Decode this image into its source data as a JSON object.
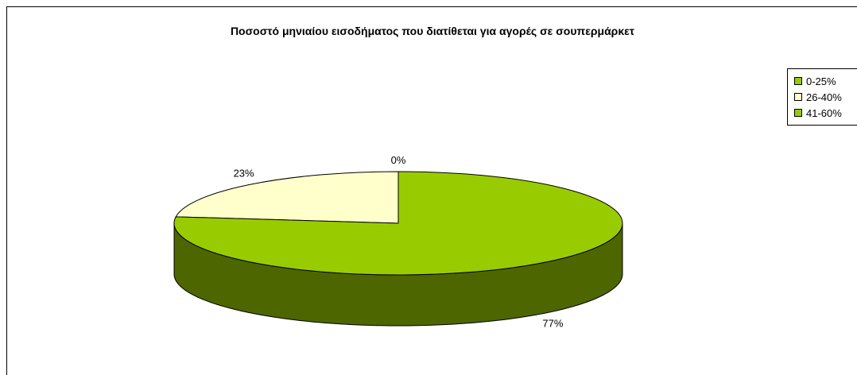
{
  "chart_data": {
    "type": "pie",
    "title": "Ποσοστό μηνιαίου εισοδήματος που διατίθεται για αγορές σε σουπερμάρκετ",
    "categories": [
      "0-25%",
      "26-40%",
      "41-60%"
    ],
    "values": [
      0,
      23,
      77
    ],
    "data_labels": [
      "0%",
      "23%",
      "77%"
    ],
    "colors": [
      "#99cc00",
      "#ffffcc",
      "#99cc00"
    ],
    "side_color": "#4d6600",
    "legend_position": "top-right",
    "style": "3d"
  }
}
